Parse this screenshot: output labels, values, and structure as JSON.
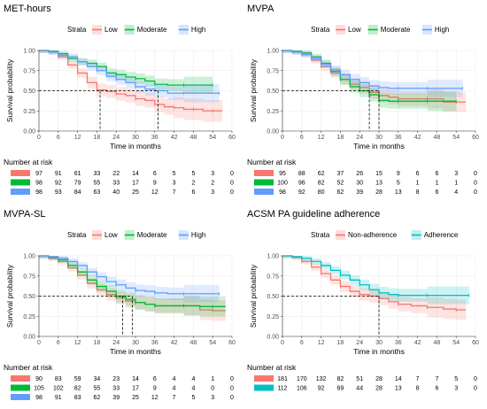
{
  "figure": {
    "panels": [
      {
        "title": "MET-hours",
        "legend_label": "Strata",
        "ylabel": "Survival probability",
        "xlabel": "Time in months",
        "risk_title": "Number at risk",
        "medians": [
          19,
          37
        ],
        "y_ticks": [
          "0.00",
          "0.25",
          "0.50",
          "0.75",
          "1.00"
        ]
      },
      {
        "title": "MVPA",
        "legend_label": "Strata",
        "ylabel": "Survival probability",
        "xlabel": "Time in months",
        "risk_title": "Number at risk",
        "medians": [
          27,
          30
        ],
        "y_ticks": [
          "0.00",
          "0.25",
          "0.50",
          "0.75",
          "1.00"
        ]
      },
      {
        "title": "MVPA-SL",
        "legend_label": "Strata",
        "ylabel": "Survival probability",
        "xlabel": "Time in months",
        "risk_title": "Number at risk",
        "medians": [
          26,
          29
        ],
        "y_ticks": [
          "0.00",
          "0.25",
          "0.50",
          "0.75",
          "1.00"
        ]
      },
      {
        "title": "ACSM PA guideline adherence",
        "legend_label": "Strata",
        "ylabel": "Survival probability",
        "xlabel": "Time in months",
        "risk_title": "Number at risk",
        "medians": [
          30
        ],
        "y_ticks": [
          "0.00",
          "0.25",
          "0.50",
          "0.75",
          "1.00"
        ]
      }
    ]
  },
  "chart_data": [
    {
      "type": "line",
      "title": "MET-hours",
      "xlabel": "Time in months",
      "ylabel": "Survival probability",
      "xlim": [
        0,
        60
      ],
      "ylim": [
        0,
        1
      ],
      "x_ticks": [
        0,
        6,
        12,
        18,
        24,
        30,
        36,
        42,
        48,
        54,
        60
      ],
      "grid": true,
      "legend_position": "top",
      "series": [
        {
          "name": "Low",
          "color": "#F8766D",
          "x": [
            0,
            3,
            6,
            9,
            12,
            15,
            18,
            21,
            24,
            27,
            30,
            33,
            36,
            39,
            42,
            45,
            48,
            51,
            54,
            57
          ],
          "y": [
            1.0,
            0.98,
            0.92,
            0.82,
            0.72,
            0.6,
            0.51,
            0.49,
            0.46,
            0.44,
            0.4,
            0.38,
            0.33,
            0.3,
            0.29,
            0.27,
            0.27,
            0.25,
            0.25,
            0.25
          ]
        },
        {
          "name": "Moderate",
          "color": "#00BA38",
          "x": [
            0,
            3,
            6,
            9,
            12,
            15,
            18,
            21,
            24,
            27,
            30,
            33,
            36,
            40,
            45,
            50,
            54
          ],
          "y": [
            1.0,
            0.99,
            0.96,
            0.9,
            0.86,
            0.84,
            0.8,
            0.72,
            0.7,
            0.67,
            0.65,
            0.62,
            0.58,
            0.57,
            0.57,
            0.57,
            0.57
          ]
        },
        {
          "name": "High",
          "color": "#619CFF",
          "x": [
            0,
            3,
            6,
            9,
            12,
            15,
            18,
            21,
            24,
            27,
            30,
            33,
            36,
            40,
            45,
            50,
            56
          ],
          "y": [
            1.0,
            0.98,
            0.94,
            0.92,
            0.86,
            0.8,
            0.75,
            0.68,
            0.64,
            0.6,
            0.55,
            0.52,
            0.5,
            0.47,
            0.47,
            0.47,
            0.47
          ]
        }
      ],
      "risk_table": {
        "time": [
          0,
          6,
          12,
          18,
          24,
          30,
          36,
          42,
          48,
          54,
          60
        ],
        "rows": [
          {
            "name": "Low",
            "color": "#F8766D",
            "values": [
              "97",
              "91",
              "61",
              "33",
              "22",
              "14",
              "6",
              "5",
              "5",
              "3",
              "0"
            ]
          },
          {
            "name": "Moderate",
            "color": "#00BA38",
            "values": [
              "98",
              "92",
              "79",
              "55",
              "33",
              "17",
              "9",
              "3",
              "2",
              "2",
              "0"
            ]
          },
          {
            "name": "High",
            "color": "#619CFF",
            "values": [
              "98",
              "93",
              "84",
              "63",
              "40",
              "25",
              "12",
              "7",
              "6",
              "3",
              "0"
            ]
          }
        ]
      }
    },
    {
      "type": "line",
      "title": "MVPA",
      "xlabel": "Time in months",
      "ylabel": "Survival probability",
      "xlim": [
        0,
        60
      ],
      "ylim": [
        0,
        1
      ],
      "x_ticks": [
        0,
        6,
        12,
        18,
        24,
        30,
        36,
        42,
        48,
        54,
        60
      ],
      "grid": true,
      "legend_position": "top",
      "series": [
        {
          "name": "Low",
          "color": "#F8766D",
          "x": [
            0,
            3,
            6,
            9,
            12,
            15,
            18,
            21,
            24,
            27,
            30,
            33,
            36,
            40,
            45,
            50,
            54,
            57
          ],
          "y": [
            1.0,
            0.98,
            0.95,
            0.88,
            0.8,
            0.72,
            0.64,
            0.58,
            0.54,
            0.48,
            0.44,
            0.42,
            0.4,
            0.4,
            0.4,
            0.36,
            0.36,
            0.36
          ]
        },
        {
          "name": "Moderate",
          "color": "#00BA38",
          "x": [
            0,
            3,
            6,
            9,
            12,
            15,
            18,
            21,
            24,
            27,
            30,
            33,
            36,
            40,
            45,
            50,
            54
          ],
          "y": [
            1.0,
            0.99,
            0.97,
            0.92,
            0.84,
            0.74,
            0.64,
            0.55,
            0.5,
            0.45,
            0.38,
            0.37,
            0.37,
            0.37,
            0.37,
            0.37,
            0.37
          ]
        },
        {
          "name": "High",
          "color": "#619CFF",
          "x": [
            0,
            3,
            6,
            9,
            12,
            15,
            18,
            21,
            24,
            27,
            30,
            33,
            36,
            40,
            45,
            50,
            56
          ],
          "y": [
            1.0,
            0.98,
            0.95,
            0.9,
            0.83,
            0.76,
            0.7,
            0.64,
            0.6,
            0.56,
            0.54,
            0.53,
            0.53,
            0.53,
            0.53,
            0.53,
            0.53
          ]
        }
      ],
      "risk_table": {
        "time": [
          0,
          6,
          12,
          18,
          24,
          30,
          36,
          42,
          48,
          54,
          60
        ],
        "rows": [
          {
            "name": "Low",
            "color": "#F8766D",
            "values": [
              "95",
              "88",
              "62",
              "37",
              "26",
              "15",
              "9",
              "6",
              "6",
              "3",
              "0"
            ]
          },
          {
            "name": "Moderate",
            "color": "#00BA38",
            "values": [
              "100",
              "96",
              "82",
              "52",
              "30",
              "13",
              "5",
              "1",
              "1",
              "1",
              "0"
            ]
          },
          {
            "name": "High",
            "color": "#619CFF",
            "values": [
              "98",
              "92",
              "80",
              "62",
              "39",
              "28",
              "13",
              "8",
              "6",
              "4",
              "0"
            ]
          }
        ]
      }
    },
    {
      "type": "line",
      "title": "MVPA-SL",
      "xlabel": "Time in months",
      "ylabel": "Survival probability",
      "xlim": [
        0,
        60
      ],
      "ylim": [
        0,
        1
      ],
      "x_ticks": [
        0,
        6,
        12,
        18,
        24,
        30,
        36,
        42,
        48,
        54,
        60
      ],
      "grid": true,
      "legend_position": "top",
      "series": [
        {
          "name": "Low",
          "color": "#F8766D",
          "x": [
            0,
            3,
            6,
            9,
            12,
            15,
            18,
            21,
            24,
            27,
            30,
            33,
            36,
            40,
            45,
            50,
            54,
            58
          ],
          "y": [
            1.0,
            0.97,
            0.93,
            0.85,
            0.76,
            0.66,
            0.58,
            0.52,
            0.48,
            0.44,
            0.42,
            0.4,
            0.38,
            0.38,
            0.38,
            0.33,
            0.32,
            0.32
          ]
        },
        {
          "name": "Moderate",
          "color": "#00BA38",
          "x": [
            0,
            3,
            6,
            9,
            12,
            15,
            18,
            21,
            24,
            27,
            30,
            33,
            36,
            40,
            45,
            50,
            54,
            58
          ],
          "y": [
            1.0,
            0.98,
            0.95,
            0.88,
            0.8,
            0.7,
            0.62,
            0.56,
            0.5,
            0.46,
            0.42,
            0.4,
            0.38,
            0.38,
            0.38,
            0.37,
            0.37,
            0.37
          ]
        },
        {
          "name": "High",
          "color": "#619CFF",
          "x": [
            0,
            3,
            6,
            9,
            12,
            15,
            18,
            21,
            24,
            27,
            30,
            33,
            36,
            40,
            45,
            50,
            56
          ],
          "y": [
            1.0,
            0.99,
            0.97,
            0.93,
            0.88,
            0.8,
            0.74,
            0.68,
            0.64,
            0.6,
            0.57,
            0.56,
            0.54,
            0.53,
            0.53,
            0.53,
            0.53
          ]
        }
      ],
      "risk_table": {
        "time": [
          0,
          6,
          12,
          18,
          24,
          30,
          36,
          42,
          48,
          54,
          60
        ],
        "rows": [
          {
            "name": "Low",
            "color": "#F8766D",
            "values": [
              "90",
              "83",
              "59",
              "34",
              "23",
              "14",
              "6",
              "4",
              "4",
              "1",
              "0"
            ]
          },
          {
            "name": "Moderate",
            "color": "#00BA38",
            "values": [
              "105",
              "102",
              "82",
              "55",
              "33",
              "17",
              "9",
              "4",
              "4",
              "0",
              "0"
            ]
          },
          {
            "name": "High",
            "color": "#619CFF",
            "values": [
              "98",
              "91",
              "83",
              "62",
              "39",
              "25",
              "12",
              "7",
              "5",
              "3",
              "0"
            ]
          }
        ]
      }
    },
    {
      "type": "line",
      "title": "ACSM PA guideline adherence",
      "xlabel": "Time in months",
      "ylabel": "Survival probability",
      "xlim": [
        0,
        60
      ],
      "ylim": [
        0,
        1
      ],
      "x_ticks": [
        0,
        6,
        12,
        18,
        24,
        30,
        36,
        42,
        48,
        54,
        60
      ],
      "grid": true,
      "legend_position": "top",
      "series": [
        {
          "name": "Non-adherence",
          "color": "#F8766D",
          "x": [
            0,
            3,
            6,
            9,
            12,
            15,
            18,
            21,
            24,
            27,
            30,
            33,
            36,
            40,
            45,
            50,
            54,
            57
          ],
          "y": [
            1.0,
            0.98,
            0.93,
            0.86,
            0.78,
            0.7,
            0.62,
            0.56,
            0.52,
            0.5,
            0.47,
            0.43,
            0.4,
            0.38,
            0.36,
            0.34,
            0.33,
            0.33
          ]
        },
        {
          "name": "Adherence",
          "color": "#00BFC4",
          "x": [
            0,
            3,
            6,
            9,
            12,
            15,
            18,
            21,
            24,
            27,
            30,
            33,
            36,
            40,
            45,
            50,
            58
          ],
          "y": [
            1.0,
            0.99,
            0.97,
            0.93,
            0.88,
            0.82,
            0.76,
            0.7,
            0.64,
            0.58,
            0.54,
            0.52,
            0.51,
            0.51,
            0.51,
            0.51,
            0.51
          ]
        }
      ],
      "risk_table": {
        "time": [
          0,
          6,
          12,
          18,
          24,
          30,
          36,
          42,
          48,
          54,
          60
        ],
        "rows": [
          {
            "name": "Non-adherence",
            "color": "#F8766D",
            "values": [
              "181",
              "170",
              "132",
              "82",
              "51",
              "28",
              "14",
              "7",
              "7",
              "5",
              "0"
            ]
          },
          {
            "name": "Adherence",
            "color": "#00BFC4",
            "values": [
              "112",
              "106",
              "92",
              "69",
              "44",
              "28",
              "13",
              "8",
              "6",
              "3",
              "0"
            ]
          }
        ]
      }
    }
  ]
}
